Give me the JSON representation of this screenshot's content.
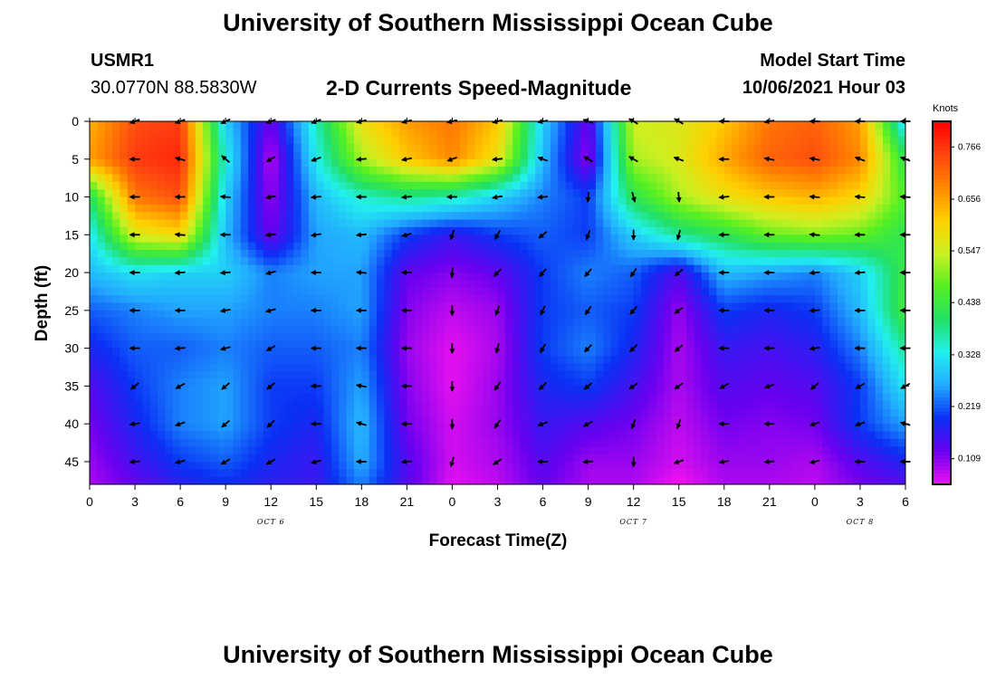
{
  "header": {
    "title": "University of Southern Mississippi Ocean Cube",
    "station": "USMR1",
    "coords": "30.0770N  88.5830W",
    "subtitle": "2-D Currents Speed-Magnitude",
    "model_start_label": "Model Start Time",
    "model_start_value": "10/06/2021 Hour 03",
    "footer_title": "University of Southern Mississippi Ocean Cube"
  },
  "colors": {
    "stops": [
      "#ee11ee",
      "#6a00f0",
      "#0a30f5",
      "#22aaff",
      "#22f0ee",
      "#22e066",
      "#55f022",
      "#ccf022",
      "#ffd000",
      "#ff8800",
      "#ff4411",
      "#ff0000"
    ],
    "arrow": "#000000"
  },
  "chart_data": {
    "type": "heatmap",
    "title": "2-D Currents Speed-Magnitude",
    "xlabel": "Forecast Time(Z)",
    "ylabel": "Depth (ft)",
    "xlim": [
      0,
      54
    ],
    "ylim": [
      48,
      0
    ],
    "x_ticks": [
      0,
      3,
      6,
      9,
      12,
      15,
      18,
      21,
      24,
      27,
      30,
      33,
      36,
      39,
      42,
      45,
      48,
      51,
      54
    ],
    "x_tick_labels": [
      "0",
      "3",
      "6",
      "9",
      "12",
      "15",
      "18",
      "21",
      "0",
      "3",
      "6",
      "9",
      "12",
      "15",
      "18",
      "21",
      "0",
      "3",
      "6"
    ],
    "y_ticks": [
      0,
      5,
      10,
      15,
      20,
      25,
      30,
      35,
      40,
      45
    ],
    "y_tick_labels": [
      "0",
      "5",
      "10",
      "15",
      "20",
      "25",
      "30",
      "35",
      "40",
      "45"
    ],
    "date_labels": [
      {
        "text": "OCT 6",
        "x": 12
      },
      {
        "text": "OCT 7",
        "x": 36
      },
      {
        "text": "OCT 8",
        "x": 51
      }
    ],
    "colorbar": {
      "unit": "Knots",
      "min": 0.055,
      "max": 0.82,
      "tick_values": [
        0.766,
        0.656,
        0.547,
        0.438,
        0.328,
        0.219,
        0.109
      ],
      "tick_labels": [
        "0.766",
        "0.656",
        "0.547",
        "0.438",
        "0.328",
        "0.219",
        "0.109"
      ]
    },
    "times": [
      0,
      3,
      6,
      9,
      12,
      15,
      18,
      21,
      24,
      27,
      30,
      33,
      36,
      39,
      42,
      45,
      48,
      51,
      54
    ],
    "depths": [
      0,
      5,
      10,
      15,
      20,
      25,
      30,
      35,
      40,
      45,
      48
    ],
    "speed": [
      [
        0.64,
        0.74,
        0.76,
        0.3,
        0.12,
        0.36,
        0.58,
        0.66,
        0.7,
        0.62,
        0.3,
        0.12,
        0.55,
        0.56,
        0.62,
        0.7,
        0.72,
        0.66,
        0.3
      ],
      [
        0.66,
        0.76,
        0.78,
        0.34,
        0.08,
        0.33,
        0.52,
        0.62,
        0.68,
        0.58,
        0.28,
        0.1,
        0.52,
        0.56,
        0.65,
        0.72,
        0.74,
        0.68,
        0.42
      ],
      [
        0.4,
        0.7,
        0.74,
        0.3,
        0.1,
        0.28,
        0.35,
        0.38,
        0.36,
        0.3,
        0.24,
        0.2,
        0.42,
        0.52,
        0.58,
        0.62,
        0.64,
        0.6,
        0.46
      ],
      [
        0.32,
        0.56,
        0.6,
        0.28,
        0.12,
        0.26,
        0.28,
        0.2,
        0.16,
        0.2,
        0.22,
        0.2,
        0.3,
        0.38,
        0.42,
        0.48,
        0.5,
        0.48,
        0.42
      ],
      [
        0.28,
        0.32,
        0.3,
        0.3,
        0.24,
        0.26,
        0.26,
        0.13,
        0.11,
        0.13,
        0.2,
        0.24,
        0.22,
        0.14,
        0.28,
        0.26,
        0.24,
        0.3,
        0.44
      ],
      [
        0.22,
        0.24,
        0.26,
        0.26,
        0.24,
        0.24,
        0.26,
        0.11,
        0.08,
        0.1,
        0.2,
        0.22,
        0.2,
        0.1,
        0.2,
        0.18,
        0.2,
        0.28,
        0.45
      ],
      [
        0.18,
        0.22,
        0.22,
        0.24,
        0.22,
        0.22,
        0.24,
        0.1,
        0.06,
        0.09,
        0.2,
        0.24,
        0.18,
        0.09,
        0.16,
        0.15,
        0.17,
        0.24,
        0.38
      ],
      [
        0.14,
        0.2,
        0.24,
        0.26,
        0.2,
        0.2,
        0.26,
        0.11,
        0.06,
        0.1,
        0.18,
        0.2,
        0.15,
        0.09,
        0.14,
        0.13,
        0.14,
        0.2,
        0.32
      ],
      [
        0.12,
        0.18,
        0.24,
        0.26,
        0.2,
        0.18,
        0.28,
        0.12,
        0.07,
        0.1,
        0.16,
        0.14,
        0.12,
        0.08,
        0.12,
        0.11,
        0.12,
        0.2,
        0.26
      ],
      [
        0.1,
        0.15,
        0.2,
        0.22,
        0.18,
        0.16,
        0.27,
        0.14,
        0.07,
        0.09,
        0.14,
        0.1,
        0.1,
        0.07,
        0.1,
        0.1,
        0.09,
        0.14,
        0.18
      ],
      [
        0.09,
        0.13,
        0.17,
        0.19,
        0.17,
        0.16,
        0.24,
        0.14,
        0.06,
        0.08,
        0.13,
        0.09,
        0.09,
        0.05,
        0.09,
        0.09,
        0.08,
        0.12,
        0.14
      ]
    ],
    "vector_times": [
      3,
      6,
      9,
      12,
      15,
      18,
      21,
      24,
      27,
      30,
      33,
      36,
      39,
      42,
      45,
      48,
      51,
      54
    ],
    "vector_depths": [
      0,
      5,
      10,
      15,
      20,
      25,
      30,
      35,
      40,
      45
    ],
    "vector_directions_deg": [
      [
        200,
        200,
        205,
        200,
        200,
        195,
        195,
        195,
        195,
        190,
        160,
        150,
        150,
        180,
        190,
        180,
        180,
        180
      ],
      [
        180,
        165,
        140,
        210,
        200,
        185,
        190,
        200,
        185,
        160,
        150,
        150,
        160,
        180,
        170,
        170,
        160,
        160
      ],
      [
        180,
        180,
        175,
        190,
        185,
        180,
        185,
        180,
        190,
        185,
        265,
        285,
        275,
        185,
        180,
        175,
        175,
        175
      ],
      [
        180,
        175,
        180,
        185,
        190,
        185,
        195,
        250,
        240,
        220,
        250,
        270,
        255,
        180,
        180,
        175,
        180,
        180
      ],
      [
        180,
        185,
        185,
        195,
        180,
        175,
        180,
        265,
        225,
        230,
        230,
        235,
        220,
        180,
        180,
        185,
        185,
        180
      ],
      [
        180,
        180,
        190,
        195,
        180,
        180,
        180,
        270,
        250,
        245,
        235,
        230,
        215,
        180,
        180,
        185,
        180,
        180
      ],
      [
        180,
        185,
        195,
        210,
        180,
        180,
        180,
        270,
        255,
        240,
        225,
        225,
        220,
        180,
        180,
        190,
        180,
        180
      ],
      [
        220,
        210,
        220,
        220,
        180,
        170,
        180,
        270,
        235,
        225,
        220,
        215,
        215,
        210,
        200,
        220,
        210,
        210
      ],
      [
        190,
        200,
        220,
        225,
        180,
        165,
        180,
        270,
        235,
        200,
        210,
        250,
        250,
        180,
        180,
        200,
        200,
        165
      ],
      [
        185,
        195,
        210,
        210,
        195,
        180,
        185,
        255,
        215,
        180,
        185,
        270,
        200,
        190,
        185,
        195,
        180,
        180
      ]
    ]
  }
}
